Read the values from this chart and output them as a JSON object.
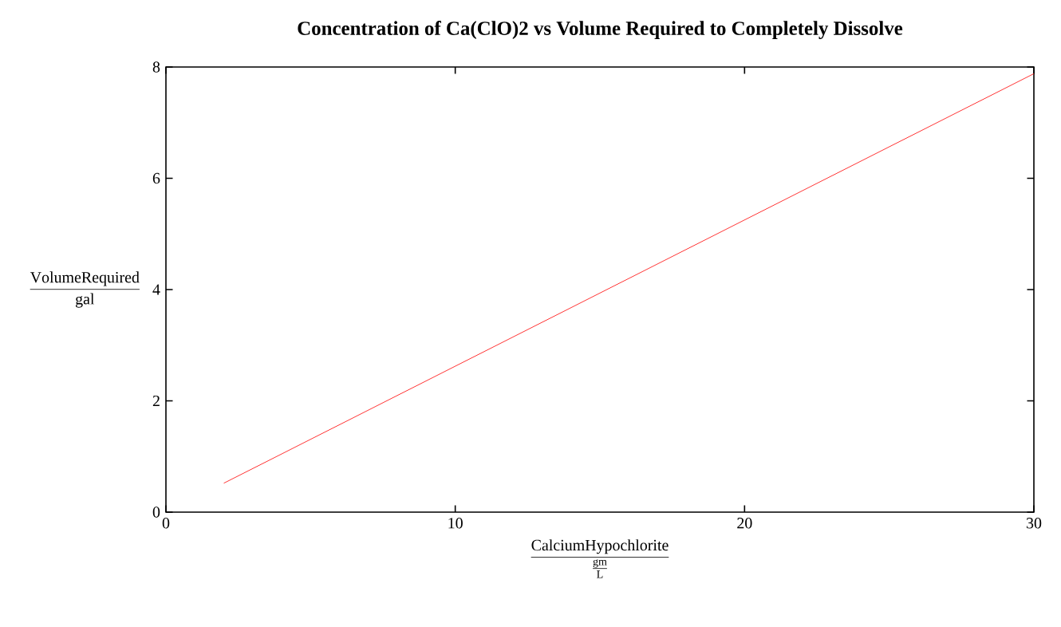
{
  "chart_data": {
    "type": "line",
    "title": "Concentration of Ca(ClO)2 vs Volume Required to Completely Dissolve",
    "xlabel": "\\frac{\\mathrm{CalciumHypochlorite}}{\\frac{\\mathrm{gm}}{\\mathrm{L}}}",
    "ylabel": "\\frac{\\mathrm{VolumeRequired}}{\\mathrm{gal}}",
    "x": [
      2,
      30
    ],
    "series": [
      {
        "color": "#ff0000",
        "values": [
          0.52,
          7.88
        ]
      }
    ],
    "xlim": [
      0,
      30
    ],
    "ylim": [
      0,
      8
    ],
    "xticks": [
      0,
      10,
      20,
      30
    ],
    "yticks": [
      0,
      2,
      4,
      6,
      8
    ],
    "grid": false,
    "marker": "none",
    "line_style": "solid"
  }
}
